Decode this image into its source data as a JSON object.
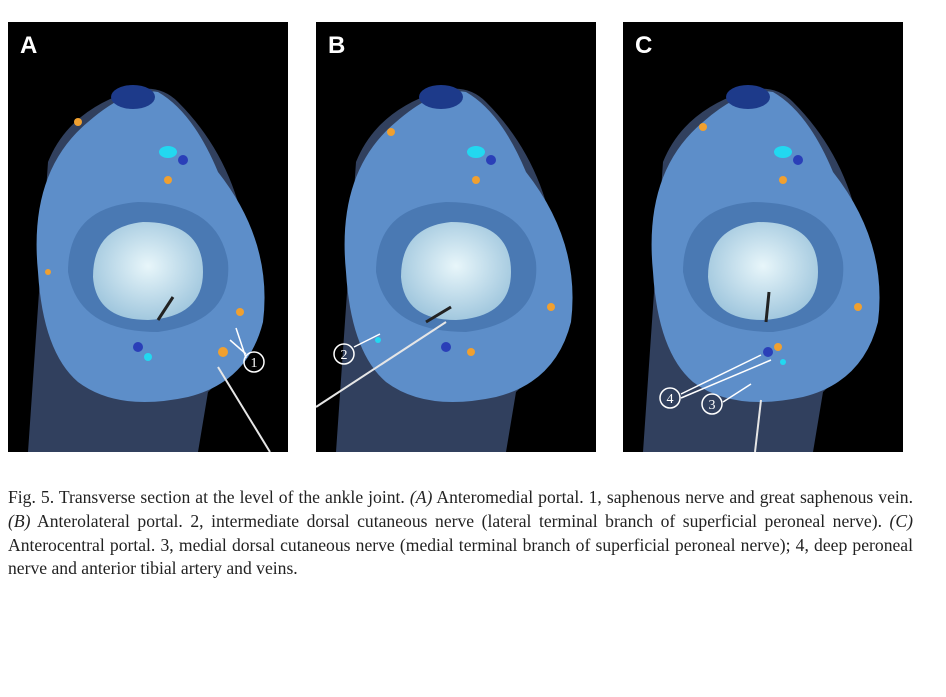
{
  "figure": {
    "panels": [
      {
        "letter": "A",
        "callouts": [
          "1"
        ]
      },
      {
        "letter": "B",
        "callouts": [
          "2"
        ]
      },
      {
        "letter": "C",
        "callouts": [
          "4",
          "3"
        ]
      }
    ],
    "caption": {
      "fig_label": "Fig. 5.",
      "intro": " Transverse section at the level of the ankle joint. ",
      "a_mark": "(A)",
      "a_text": " Anteromedial portal. 1, saphenous nerve and great saphenous vein. ",
      "b_mark": "(B)",
      "b_text": " Anterolateral portal. 2, intermediate dorsal cutaneous nerve (lateral terminal branch of superficial peroneal nerve). ",
      "c_mark": "(C)",
      "c_text": " Anterocentral portal. 3, medial dorsal cutaneous nerve (medial terminal branch of superficial peroneal nerve); 4, deep peroneal nerve and anterior tibial artery and veins."
    },
    "colors": {
      "panel_bg": "#000000",
      "tissue": "#5d8ec9",
      "talus": "#cfe6f0",
      "nerve": "#f0a030",
      "vessel": "#2a3fb8",
      "accent": "#22d8f0"
    }
  }
}
